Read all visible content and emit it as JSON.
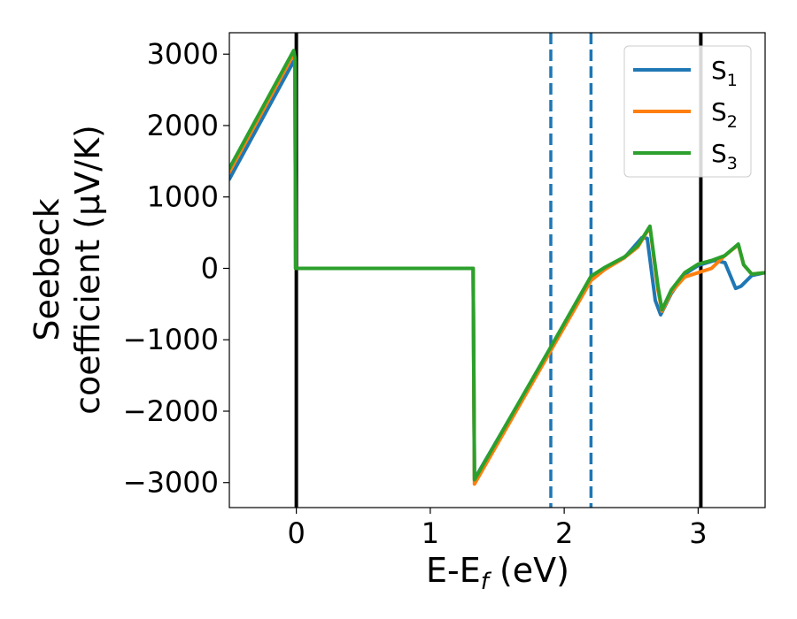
{
  "chart_data": {
    "type": "line",
    "xlabel": "E-E",
    "xlabel_sub": "f",
    "xlabel_unit": " (eV)",
    "ylabel_line1": "Seebeck",
    "ylabel_line2": "coefficient  (μV/K)",
    "xlim": [
      -0.5,
      3.5
    ],
    "ylim": [
      -3350,
      3300
    ],
    "x_ticks": [
      {
        "value": 0,
        "label": "0"
      },
      {
        "value": 1,
        "label": "1"
      },
      {
        "value": 2,
        "label": "2"
      },
      {
        "value": 3,
        "label": "3"
      }
    ],
    "y_ticks": [
      {
        "value": 3000,
        "label": "3000"
      },
      {
        "value": 2000,
        "label": "2000"
      },
      {
        "value": 1000,
        "label": "1000"
      },
      {
        "value": 0,
        "label": "0"
      },
      {
        "value": -1000,
        "label": "−1000"
      },
      {
        "value": -2000,
        "label": "−2000"
      },
      {
        "value": -3000,
        "label": "−3000"
      }
    ],
    "grid": false,
    "legend_position": "top-right",
    "vlines": [
      {
        "x": 0,
        "color": "#000000",
        "style": "solid"
      },
      {
        "x": 1.9,
        "color": "#1f77b4",
        "style": "dashed"
      },
      {
        "x": 2.2,
        "color": "#1f77b4",
        "style": "dashed"
      },
      {
        "x": 3.02,
        "color": "#000000",
        "style": "solid"
      }
    ],
    "series": [
      {
        "name": "S",
        "sub": "1",
        "color": "#1f77b4",
        "points": [
          [
            -0.5,
            1250
          ],
          [
            -0.02,
            2900
          ],
          [
            -0.01,
            2800
          ],
          [
            -0.005,
            0
          ],
          [
            1.31,
            0
          ],
          [
            1.32,
            0
          ],
          [
            1.33,
            -2950
          ],
          [
            1.9,
            -1120
          ],
          [
            2.2,
            -130
          ],
          [
            2.3,
            0
          ],
          [
            2.45,
            150
          ],
          [
            2.58,
            430
          ],
          [
            2.62,
            420
          ],
          [
            2.68,
            -450
          ],
          [
            2.72,
            -650
          ],
          [
            2.8,
            -350
          ],
          [
            2.9,
            -80
          ],
          [
            3.0,
            40
          ],
          [
            3.12,
            110
          ],
          [
            3.2,
            80
          ],
          [
            3.28,
            -280
          ],
          [
            3.32,
            -250
          ],
          [
            3.4,
            -100
          ],
          [
            3.5,
            -60
          ]
        ]
      },
      {
        "name": "S",
        "sub": "2",
        "color": "#ff7f0e",
        "points": [
          [
            -0.5,
            1350
          ],
          [
            -0.02,
            3000
          ],
          [
            -0.01,
            2900
          ],
          [
            -0.005,
            0
          ],
          [
            1.31,
            0
          ],
          [
            1.32,
            0
          ],
          [
            1.33,
            -3020
          ],
          [
            1.9,
            -1150
          ],
          [
            2.2,
            -170
          ],
          [
            2.3,
            -20
          ],
          [
            2.45,
            150
          ],
          [
            2.55,
            300
          ],
          [
            2.64,
            580
          ],
          [
            2.7,
            -300
          ],
          [
            2.73,
            -600
          ],
          [
            2.8,
            -330
          ],
          [
            2.9,
            -120
          ],
          [
            3.0,
            -60
          ],
          [
            3.1,
            0
          ],
          [
            3.2,
            180
          ],
          [
            3.3,
            330
          ],
          [
            3.34,
            50
          ],
          [
            3.4,
            -80
          ],
          [
            3.5,
            -60
          ]
        ]
      },
      {
        "name": "S",
        "sub": "3",
        "color": "#2ca02c",
        "points": [
          [
            -0.5,
            1400
          ],
          [
            -0.02,
            3050
          ],
          [
            -0.01,
            2950
          ],
          [
            -0.005,
            0
          ],
          [
            1.31,
            0
          ],
          [
            1.32,
            0
          ],
          [
            1.33,
            -2960
          ],
          [
            1.9,
            -1100
          ],
          [
            2.2,
            -110
          ],
          [
            2.3,
            10
          ],
          [
            2.45,
            160
          ],
          [
            2.55,
            320
          ],
          [
            2.64,
            590
          ],
          [
            2.7,
            -250
          ],
          [
            2.73,
            -580
          ],
          [
            2.8,
            -300
          ],
          [
            2.9,
            -60
          ],
          [
            3.0,
            60
          ],
          [
            3.1,
            110
          ],
          [
            3.2,
            180
          ],
          [
            3.3,
            340
          ],
          [
            3.34,
            50
          ],
          [
            3.4,
            -80
          ],
          [
            3.5,
            -60
          ]
        ]
      }
    ]
  }
}
